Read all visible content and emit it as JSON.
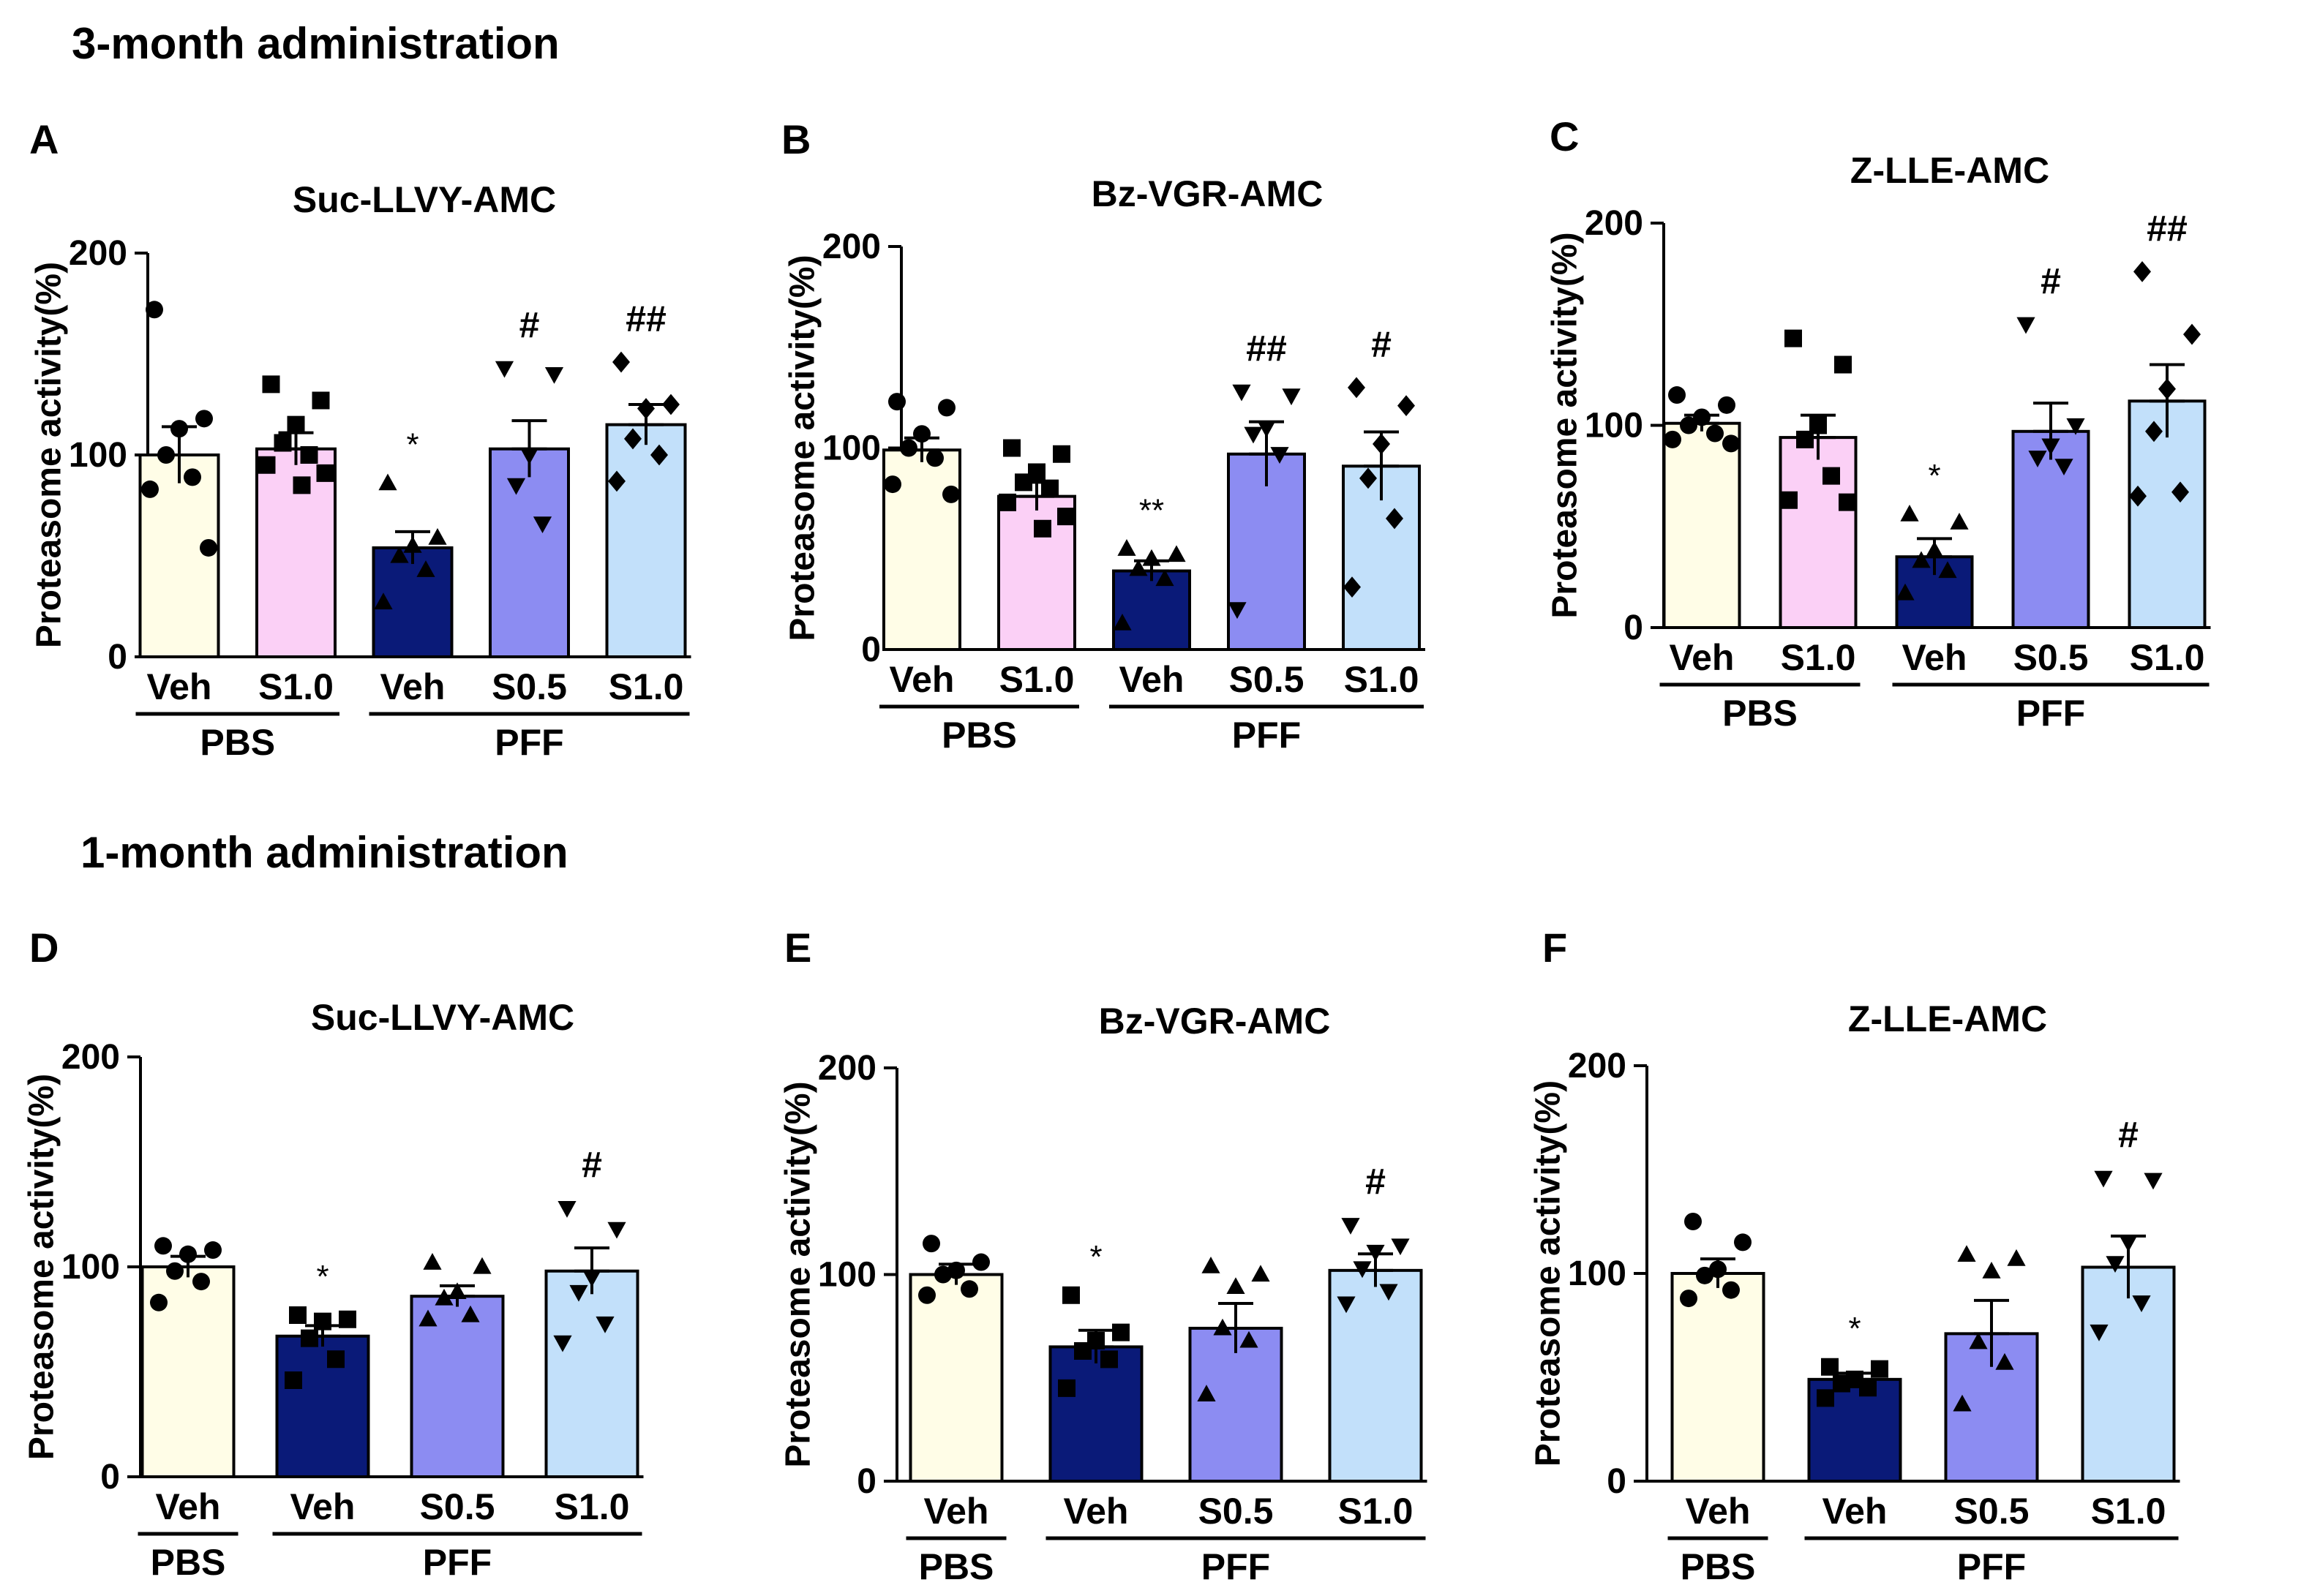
{
  "section_titles": {
    "top": "3-month administration",
    "bottom": "1-month administration"
  },
  "colors": {
    "pbs_veh": "#fffde7",
    "pbs_s10": "#fbd0f6",
    "pff_veh": "#0a1a78",
    "pff_s05": "#8c8cf2",
    "pff_s10": "#c2e0fa"
  },
  "chart_data": [
    {
      "panel": "A",
      "type": "bar",
      "title": "Suc-LLVY-AMC",
      "ylabel": "Proteasome activity(%)",
      "ylim": [
        0,
        200
      ],
      "yticks": [
        0,
        100,
        200
      ],
      "categories": [
        "Veh",
        "S1.0",
        "Veh",
        "S0.5",
        "S1.0"
      ],
      "groups": [
        {
          "label": "PBS",
          "from": 0,
          "to": 1
        },
        {
          "label": "PFF",
          "from": 2,
          "to": 4
        }
      ],
      "fills": [
        "pbs_veh",
        "pbs_s10",
        "pff_veh",
        "pff_s05",
        "pff_s10"
      ],
      "markers": [
        "circle",
        "square",
        "triangle",
        "triangle-down",
        "diamond"
      ],
      "means": [
        100,
        103,
        54,
        103,
        115
      ],
      "sem": [
        14,
        8,
        8,
        14,
        10
      ],
      "points": [
        [
          172,
          118,
          113,
          100,
          89,
          83,
          54
        ],
        [
          135,
          127,
          115,
          106,
          100,
          95,
          91,
          85
        ],
        [
          86,
          59,
          55,
          50,
          43,
          27
        ],
        [
          143,
          140,
          100,
          85,
          66
        ],
        [
          146,
          125,
          123,
          108,
          100,
          87
        ]
      ],
      "annotations": [
        "",
        "",
        "*",
        "#",
        "##"
      ]
    },
    {
      "panel": "B",
      "type": "bar",
      "title": "Bz-VGR-AMC",
      "ylabel": "Proteasome activity(%)",
      "ylim": [
        0,
        200
      ],
      "yticks": [
        0,
        100,
        200
      ],
      "categories": [
        "Veh",
        "S1.0",
        "Veh",
        "S0.5",
        "S1.0"
      ],
      "groups": [
        {
          "label": "PBS",
          "from": 0,
          "to": 1
        },
        {
          "label": "PFF",
          "from": 2,
          "to": 4
        }
      ],
      "fills": [
        "pbs_veh",
        "pbs_s10",
        "pff_veh",
        "pff_s05",
        "pff_s10"
      ],
      "markers": [
        "circle",
        "square",
        "triangle",
        "triangle-down",
        "diamond"
      ],
      "means": [
        99,
        76,
        39,
        97,
        91
      ],
      "sem": [
        6,
        7,
        5,
        16,
        17
      ],
      "points": [
        [
          123,
          120,
          107,
          100,
          95,
          82,
          77
        ],
        [
          100,
          97,
          88,
          83,
          80,
          73,
          66,
          60
        ],
        [
          50,
          47,
          45,
          40,
          35,
          13
        ],
        [
          128,
          126,
          110,
          107,
          97,
          20
        ],
        [
          130,
          121,
          102,
          85,
          65,
          31
        ]
      ],
      "annotations": [
        "",
        "",
        "**",
        "##",
        "#"
      ]
    },
    {
      "panel": "C",
      "type": "bar",
      "title": "Z-LLE-AMC",
      "ylabel": "Proteasome activity(%)",
      "ylim": [
        0,
        200
      ],
      "yticks": [
        0,
        100,
        200
      ],
      "categories": [
        "Veh",
        "S1.0",
        "Veh",
        "S0.5",
        "S1.0"
      ],
      "groups": [
        {
          "label": "PBS",
          "from": 0,
          "to": 1
        },
        {
          "label": "PFF",
          "from": 2,
          "to": 4
        }
      ],
      "fills": [
        "pbs_veh",
        "pbs_s10",
        "pff_veh",
        "pff_s05",
        "pff_s10"
      ],
      "markers": [
        "circle",
        "square",
        "triangle",
        "triangle-down",
        "diamond"
      ],
      "means": [
        101,
        94,
        35,
        97,
        112
      ],
      "sem": [
        4,
        11,
        9,
        14,
        18
      ],
      "points": [
        [
          115,
          110,
          104,
          100,
          96,
          93,
          91
        ],
        [
          143,
          130,
          100,
          93,
          75,
          63,
          62
        ],
        [
          56,
          52,
          38,
          33,
          28,
          17
        ],
        [
          150,
          100,
          90,
          84,
          80
        ],
        [
          176,
          145,
          118,
          97,
          67,
          65
        ]
      ],
      "annotations": [
        "",
        "",
        "*",
        "#",
        "##"
      ]
    },
    {
      "panel": "D",
      "type": "bar",
      "title": "Suc-LLVY-AMC",
      "ylabel": "Proteasome activity(%)",
      "ylim": [
        0,
        200
      ],
      "yticks": [
        0,
        100,
        200
      ],
      "categories": [
        "Veh",
        "Veh",
        "S0.5",
        "S1.0"
      ],
      "groups": [
        {
          "label": "PBS",
          "from": 0,
          "to": 0
        },
        {
          "label": "PFF",
          "from": 1,
          "to": 3
        }
      ],
      "fills": [
        "pbs_veh",
        "pff_veh",
        "pff_s05",
        "pff_s10"
      ],
      "markers": [
        "circle",
        "square",
        "triangle",
        "triangle-down"
      ],
      "means": [
        100,
        67,
        86,
        98
      ],
      "sem": [
        5,
        5,
        5,
        11
      ],
      "points": [
        [
          110,
          108,
          106,
          98,
          93,
          83
        ],
        [
          77,
          75,
          74,
          66,
          56,
          46
        ],
        [
          102,
          100,
          88,
          85,
          77,
          75
        ],
        [
          128,
          118,
          95,
          88,
          73,
          64
        ]
      ],
      "annotations": [
        "",
        "*",
        "",
        "#"
      ]
    },
    {
      "panel": "E",
      "type": "bar",
      "title": "Bz-VGR-AMC",
      "ylabel": "Proteasome activity(%)",
      "ylim": [
        0,
        200
      ],
      "yticks": [
        0,
        100,
        200
      ],
      "categories": [
        "Veh",
        "Veh",
        "S0.5",
        "S1.0"
      ],
      "groups": [
        {
          "label": "PBS",
          "from": 0,
          "to": 0
        },
        {
          "label": "PFF",
          "from": 1,
          "to": 3
        }
      ],
      "fills": [
        "pbs_veh",
        "pff_veh",
        "pff_s05",
        "pff_s10"
      ],
      "markers": [
        "circle",
        "square",
        "triangle",
        "triangle-down"
      ],
      "means": [
        100,
        65,
        74,
        102
      ],
      "sem": [
        5,
        8,
        12,
        8
      ],
      "points": [
        [
          115,
          106,
          102,
          100,
          93,
          90
        ],
        [
          90,
          72,
          68,
          63,
          59,
          45
        ],
        [
          104,
          100,
          94,
          74,
          68,
          42
        ],
        [
          124,
          114,
          111,
          103,
          92,
          86
        ]
      ],
      "annotations": [
        "",
        "*",
        "",
        "#"
      ]
    },
    {
      "panel": "F",
      "type": "bar",
      "title": "Z-LLE-AMC",
      "ylabel": "Proteasome activity(%)",
      "ylim": [
        0,
        200
      ],
      "yticks": [
        0,
        100,
        200
      ],
      "categories": [
        "Veh",
        "Veh",
        "S0.5",
        "S1.0"
      ],
      "groups": [
        {
          "label": "PBS",
          "from": 0,
          "to": 0
        },
        {
          "label": "PFF",
          "from": 1,
          "to": 3
        }
      ],
      "fills": [
        "pbs_veh",
        "pff_veh",
        "pff_s05",
        "pff_s10"
      ],
      "markers": [
        "circle",
        "square",
        "triangle",
        "triangle-down"
      ],
      "means": [
        100,
        49,
        71,
        103
      ],
      "sem": [
        7,
        3,
        16,
        15
      ],
      "points": [
        [
          125,
          115,
          102,
          99,
          92,
          88
        ],
        [
          55,
          54,
          49,
          47,
          45,
          40
        ],
        [
          109,
          107,
          101,
          67,
          57,
          37
        ],
        [
          146,
          145,
          115,
          105,
          86,
          72
        ]
      ],
      "annotations": [
        "",
        "*",
        "",
        "#"
      ]
    }
  ]
}
